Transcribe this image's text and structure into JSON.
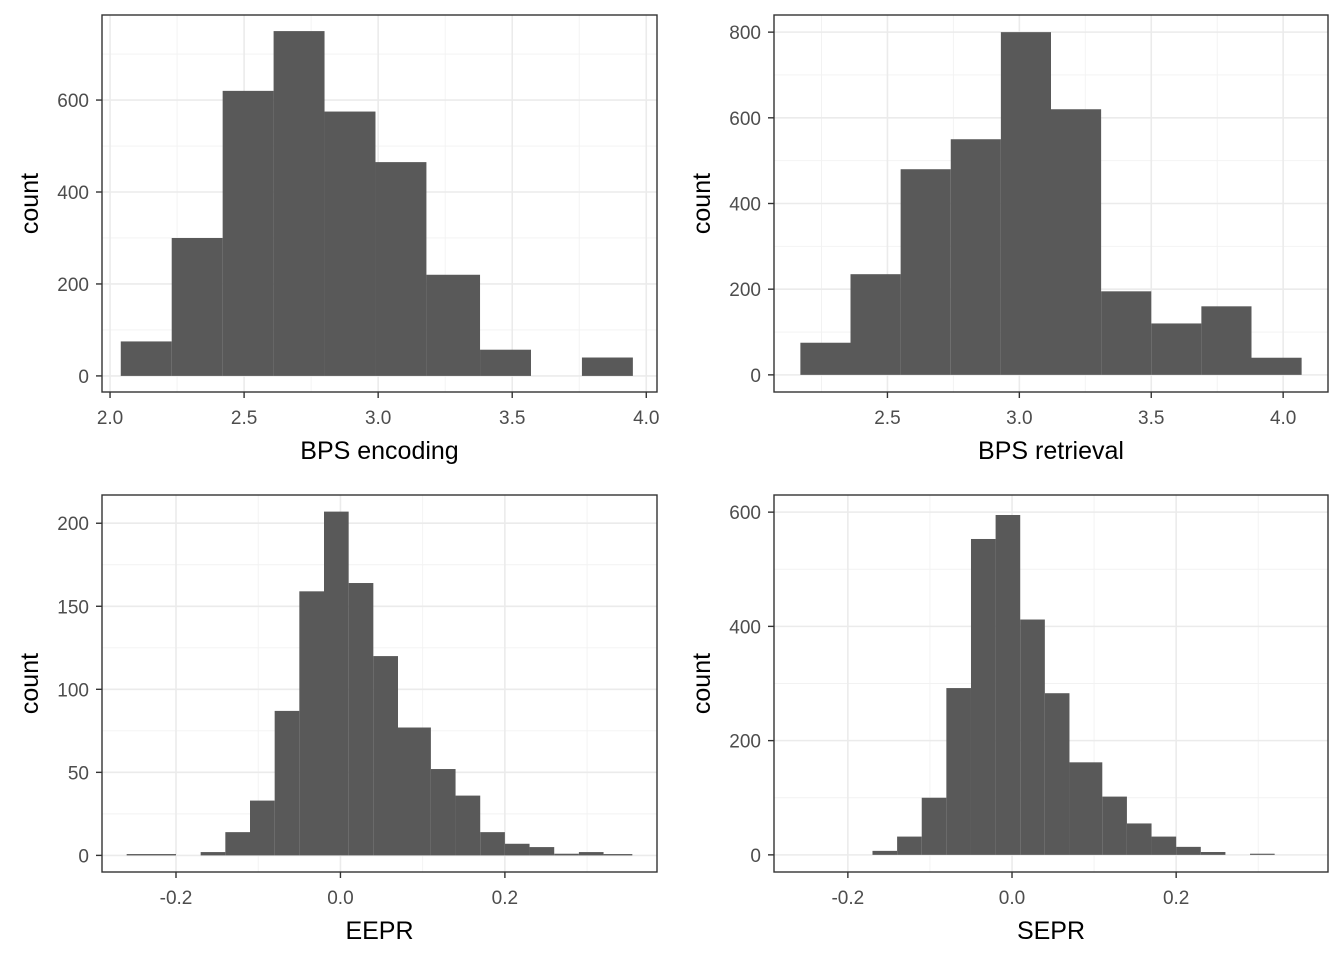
{
  "style": {
    "bar_color": "#595959",
    "grid_color": "#ebebeb",
    "panel_border": "#333333",
    "tick_label_color": "#4d4d4d"
  },
  "chart_data": [
    {
      "type": "bar",
      "xlabel": "BPS encoding",
      "ylabel": "count",
      "xlim": [
        1.97,
        4.04
      ],
      "ylim": [
        -35,
        785
      ],
      "x_ticks": [
        2.0,
        2.5,
        3.0,
        3.5,
        4.0
      ],
      "x_tick_labels": [
        "2.0",
        "2.5",
        "3.0",
        "3.5",
        "4.0"
      ],
      "y_ticks": [
        0,
        200,
        400,
        600
      ],
      "y_tick_labels": [
        "0",
        "200",
        "400",
        "600"
      ],
      "grid": true,
      "bins": [
        {
          "x0": 2.04,
          "x1": 2.23,
          "count": 75
        },
        {
          "x0": 2.23,
          "x1": 2.42,
          "count": 300
        },
        {
          "x0": 2.42,
          "x1": 2.61,
          "count": 620
        },
        {
          "x0": 2.61,
          "x1": 2.8,
          "count": 750
        },
        {
          "x0": 2.8,
          "x1": 2.99,
          "count": 575
        },
        {
          "x0": 2.99,
          "x1": 3.18,
          "count": 465
        },
        {
          "x0": 3.18,
          "x1": 3.38,
          "count": 220
        },
        {
          "x0": 3.38,
          "x1": 3.57,
          "count": 57
        },
        {
          "x0": 3.57,
          "x1": 3.76,
          "count": 0
        },
        {
          "x0": 3.76,
          "x1": 3.95,
          "count": 40
        }
      ]
    },
    {
      "type": "bar",
      "xlabel": "BPS retrieval",
      "ylabel": "count",
      "xlim": [
        2.07,
        4.17
      ],
      "ylim": [
        -40,
        840
      ],
      "x_ticks": [
        2.5,
        3.0,
        3.5,
        4.0
      ],
      "x_tick_labels": [
        "2.5",
        "3.0",
        "3.5",
        "4.0"
      ],
      "y_ticks": [
        0,
        200,
        400,
        600,
        800
      ],
      "y_tick_labels": [
        "0",
        "200",
        "400",
        "600",
        "800"
      ],
      "grid": true,
      "bins": [
        {
          "x0": 2.17,
          "x1": 2.36,
          "count": 75
        },
        {
          "x0": 2.36,
          "x1": 2.55,
          "count": 235
        },
        {
          "x0": 2.55,
          "x1": 2.74,
          "count": 480
        },
        {
          "x0": 2.74,
          "x1": 2.93,
          "count": 550
        },
        {
          "x0": 2.93,
          "x1": 3.12,
          "count": 800
        },
        {
          "x0": 3.12,
          "x1": 3.31,
          "count": 620
        },
        {
          "x0": 3.31,
          "x1": 3.5,
          "count": 195
        },
        {
          "x0": 3.5,
          "x1": 3.69,
          "count": 120
        },
        {
          "x0": 3.69,
          "x1": 3.88,
          "count": 160
        },
        {
          "x0": 3.88,
          "x1": 4.07,
          "count": 40
        }
      ]
    },
    {
      "type": "bar",
      "xlabel": "EEPR",
      "ylabel": "count",
      "xlim": [
        -0.29,
        0.385
      ],
      "ylim": [
        -10,
        217
      ],
      "x_ticks": [
        -0.2,
        0.0,
        0.2
      ],
      "x_tick_labels": [
        "-0.2",
        "0.0",
        "0.2"
      ],
      "y_ticks": [
        0,
        50,
        100,
        150,
        200
      ],
      "y_tick_labels": [
        "0",
        "50",
        "100",
        "150",
        "200"
      ],
      "grid": true,
      "bins": [
        {
          "x0": -0.26,
          "x1": -0.2,
          "count": 0.8
        },
        {
          "x0": -0.2,
          "x1": -0.17,
          "count": 0
        },
        {
          "x0": -0.17,
          "x1": -0.14,
          "count": 2
        },
        {
          "x0": -0.14,
          "x1": -0.11,
          "count": 14
        },
        {
          "x0": -0.11,
          "x1": -0.08,
          "count": 33
        },
        {
          "x0": -0.08,
          "x1": -0.05,
          "count": 87
        },
        {
          "x0": -0.05,
          "x1": -0.02,
          "count": 159
        },
        {
          "x0": -0.02,
          "x1": 0.01,
          "count": 207
        },
        {
          "x0": 0.01,
          "x1": 0.04,
          "count": 164
        },
        {
          "x0": 0.04,
          "x1": 0.07,
          "count": 120
        },
        {
          "x0": 0.07,
          "x1": 0.11,
          "count": 77
        },
        {
          "x0": 0.11,
          "x1": 0.14,
          "count": 52
        },
        {
          "x0": 0.14,
          "x1": 0.17,
          "count": 36
        },
        {
          "x0": 0.17,
          "x1": 0.2,
          "count": 14
        },
        {
          "x0": 0.2,
          "x1": 0.23,
          "count": 7
        },
        {
          "x0": 0.23,
          "x1": 0.26,
          "count": 5
        },
        {
          "x0": 0.26,
          "x1": 0.29,
          "count": 1
        },
        {
          "x0": 0.29,
          "x1": 0.32,
          "count": 2
        },
        {
          "x0": 0.32,
          "x1": 0.355,
          "count": 0.8
        }
      ]
    },
    {
      "type": "bar",
      "xlabel": "SEPR",
      "ylabel": "count",
      "xlim": [
        -0.29,
        0.385
      ],
      "ylim": [
        -30,
        630
      ],
      "x_ticks": [
        -0.2,
        0.0,
        0.2
      ],
      "x_tick_labels": [
        "-0.2",
        "0.0",
        "0.2"
      ],
      "y_ticks": [
        0,
        200,
        400,
        600
      ],
      "y_tick_labels": [
        "0",
        "200",
        "400",
        "600"
      ],
      "grid": true,
      "bins": [
        {
          "x0": -0.17,
          "x1": -0.14,
          "count": 7
        },
        {
          "x0": -0.14,
          "x1": -0.11,
          "count": 32
        },
        {
          "x0": -0.11,
          "x1": -0.08,
          "count": 100
        },
        {
          "x0": -0.08,
          "x1": -0.05,
          "count": 292
        },
        {
          "x0": -0.05,
          "x1": -0.02,
          "count": 553
        },
        {
          "x0": -0.02,
          "x1": 0.01,
          "count": 595
        },
        {
          "x0": 0.01,
          "x1": 0.04,
          "count": 412
        },
        {
          "x0": 0.04,
          "x1": 0.07,
          "count": 283
        },
        {
          "x0": 0.07,
          "x1": 0.11,
          "count": 162
        },
        {
          "x0": 0.11,
          "x1": 0.14,
          "count": 102
        },
        {
          "x0": 0.14,
          "x1": 0.17,
          "count": 55
        },
        {
          "x0": 0.17,
          "x1": 0.2,
          "count": 32
        },
        {
          "x0": 0.2,
          "x1": 0.23,
          "count": 14
        },
        {
          "x0": 0.23,
          "x1": 0.26,
          "count": 5
        },
        {
          "x0": 0.26,
          "x1": 0.29,
          "count": 0
        },
        {
          "x0": 0.29,
          "x1": 0.32,
          "count": 2
        }
      ]
    }
  ]
}
